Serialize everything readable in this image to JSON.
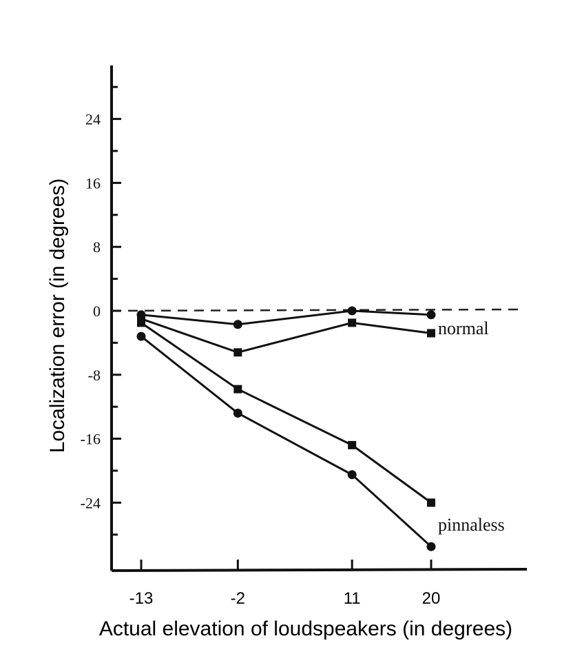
{
  "chart_data": {
    "type": "line",
    "title": "",
    "xlabel": "Actual elevation of loudspeakers (in degrees)",
    "ylabel": "Localization error (in degrees)",
    "x": [
      -13,
      -2,
      11,
      20
    ],
    "x_tick_labels": [
      "-13",
      "-2",
      "11",
      "20"
    ],
    "xlim": [
      -15.5,
      30.5
    ],
    "y_ticks": [
      24,
      16,
      8,
      0,
      -8,
      -16,
      -24
    ],
    "y_tick_labels": [
      "24",
      "16",
      "8",
      "0",
      "-8",
      "-16",
      "-24"
    ],
    "ylim": [
      -32,
      31
    ],
    "reference_line": {
      "y": 0,
      "style": "dashed"
    },
    "series": [
      {
        "group": "normal",
        "values": [
          -0.5,
          -1.7,
          0,
          -0.5
        ]
      },
      {
        "group": "normal",
        "values": [
          -1,
          -5.2,
          -1.5,
          -2.8
        ]
      },
      {
        "group": "pinnaless",
        "values": [
          -1.5,
          -9.8,
          -16.8,
          -24
        ]
      },
      {
        "group": "pinnaless",
        "values": [
          -3.2,
          -12.8,
          -20.5,
          -29.5
        ]
      }
    ],
    "series_labels": [
      {
        "text": "normal",
        "series_group": "normal"
      },
      {
        "text": "pinnaless",
        "series_group": "pinnaless"
      }
    ],
    "marker_color": "#111111",
    "grid": false,
    "legend": "none"
  }
}
